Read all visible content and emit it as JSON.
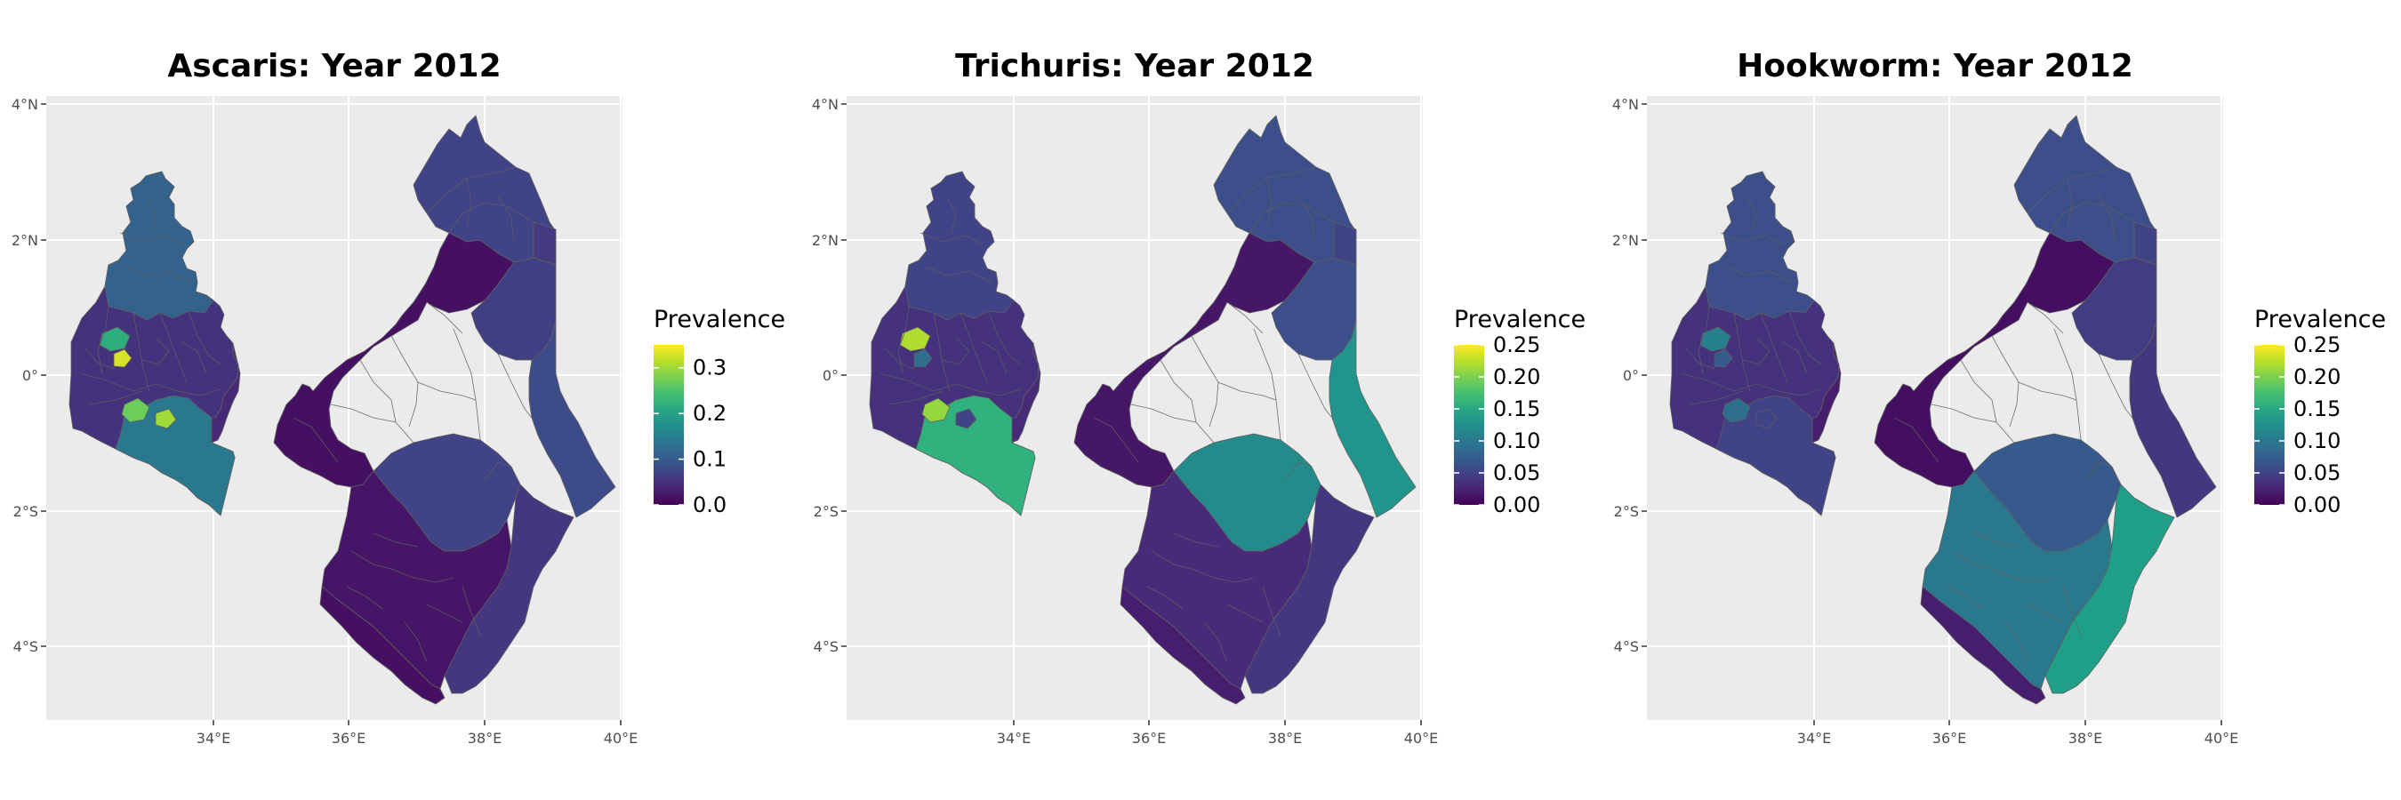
{
  "colors": {
    "panel_bg": "#EBEBEB",
    "grid": "#FFFFFF",
    "region_border": "#5f5f5f",
    "viridis_low": "#440154",
    "viridis_mid": "#21918C",
    "viridis_high": "#FDE725"
  },
  "axes": {
    "x_ticks": [
      "34°E",
      "36°E",
      "38°E",
      "40°E"
    ],
    "y_ticks": [
      "4°N",
      "2°N",
      "0°",
      "2°S",
      "4°S"
    ]
  },
  "maps": [
    {
      "title": "Ascaris: Year 2012",
      "legend_title": "Prevalence",
      "legend_ticks": [
        "0.3",
        "0.2",
        "0.1",
        "0.0"
      ],
      "scale_max": 0.35,
      "regions": {
        "west_base": 0.05,
        "west_upper": 0.11,
        "west_south": 0.14,
        "west_southeast": 0.04,
        "west_hotspot_1": 0.22,
        "west_hotspot_2": 0.27,
        "west_hotspot_3": 0.33,
        "west_hotspot_4": 0.3,
        "east_north": 0.07,
        "east_northeast": 0.06,
        "east_central_west": 0.015,
        "east_central_east": 0.065,
        "east_coast_northeast": 0.08,
        "east_tana": 0.07,
        "east_south": 0.02,
        "east_coast_south": 0.055,
        "east_southwest": 0.015
      }
    },
    {
      "title": "Trichuris: Year 2012",
      "legend_title": "Prevalence",
      "legend_ticks": [
        "0.25",
        "0.20",
        "0.15",
        "0.10",
        "0.05",
        "0.00"
      ],
      "scale_max": 0.25,
      "regions": {
        "west_base": 0.035,
        "west_upper": 0.05,
        "west_south": 0.16,
        "west_southeast": 0.03,
        "west_hotspot_1": 0.22,
        "west_hotspot_2": 0.21,
        "west_hotspot_3": 0.09,
        "west_hotspot_4": 0.05,
        "east_north": 0.06,
        "east_northeast": 0.05,
        "east_central_west": 0.015,
        "east_central_east": 0.06,
        "east_coast_northeast": 0.13,
        "east_tana": 0.12,
        "east_south": 0.03,
        "east_coast_south": 0.04,
        "east_southwest": 0.02
      }
    },
    {
      "title": "Hookworm: Year 2012",
      "legend_title": "Prevalence",
      "legend_ticks": [
        "0.25",
        "0.20",
        "0.15",
        "0.10",
        "0.05",
        "0.00"
      ],
      "scale_max": 0.25,
      "regions": {
        "west_base": 0.035,
        "west_upper": 0.06,
        "west_south": 0.05,
        "west_southeast": 0.02,
        "west_hotspot_1": 0.11,
        "west_hotspot_2": 0.09,
        "west_hotspot_3": 0.07,
        "west_hotspot_4": 0.05,
        "east_north": 0.06,
        "east_northeast": 0.05,
        "east_central_west": 0.01,
        "east_central_east": 0.045,
        "east_coast_northeast": 0.04,
        "east_tana": 0.07,
        "east_south": 0.1,
        "east_coast_south": 0.14,
        "east_southwest": 0.02
      }
    }
  ]
}
